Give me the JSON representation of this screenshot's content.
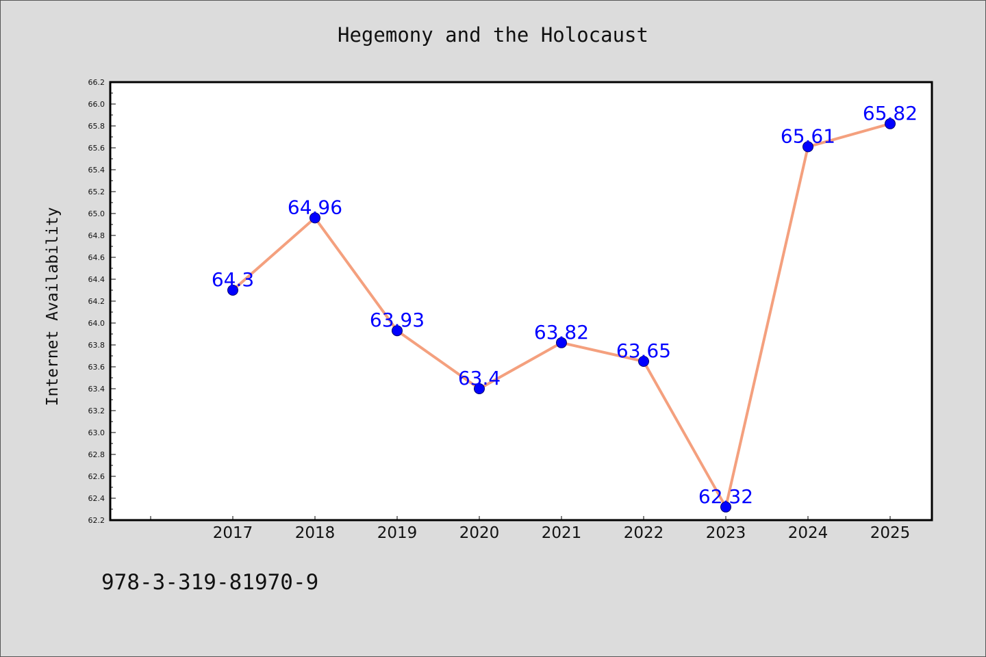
{
  "chart_data": {
    "type": "line",
    "title": "Hegemony and the Holocaust",
    "xlabel": "",
    "ylabel": "Internet Availability",
    "categories": [
      "2017",
      "2018",
      "2019",
      "2020",
      "2021",
      "2022",
      "2023",
      "2024",
      "2025"
    ],
    "values": [
      64.3,
      64.96,
      63.93,
      63.4,
      63.82,
      63.65,
      62.32,
      65.61,
      65.82
    ],
    "data_labels": [
      "64.3",
      "64.96",
      "63.93",
      "63.4",
      "63.82",
      "63.65",
      "62.32",
      "65.61",
      "65.82"
    ],
    "ylim": [
      62.2,
      66.2
    ],
    "y_ticks": [
      "62.2",
      "62.4",
      "62.6",
      "62.8",
      "63.0",
      "63.2",
      "63.4",
      "63.6",
      "63.8",
      "64.0",
      "64.2",
      "64.4",
      "64.6",
      "64.8",
      "65.0",
      "65.2",
      "65.4",
      "65.6",
      "65.8",
      "66.0",
      "66.2"
    ],
    "grid": false,
    "line_color": "#f4a07e",
    "marker_color": "#0000ff",
    "label_color": "#0000ff"
  },
  "footer_text": "978-3-319-81970-9"
}
